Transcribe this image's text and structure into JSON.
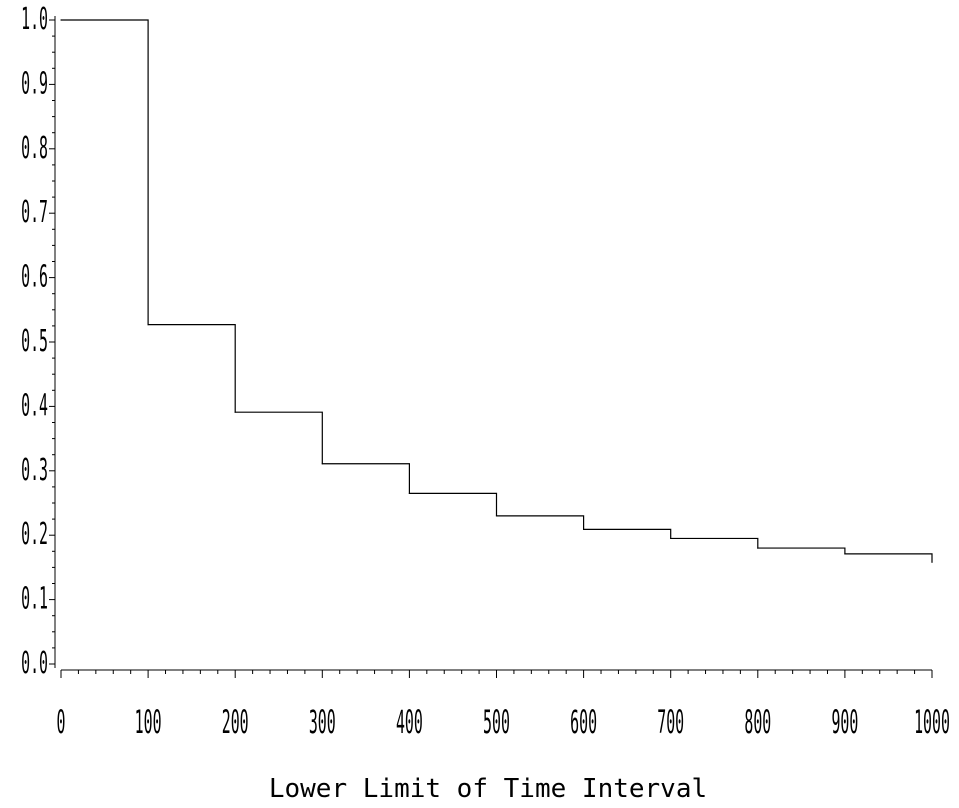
{
  "chart_data": {
    "type": "line",
    "step": true,
    "title": "",
    "xlabel": "Lower Limit of Time Interval",
    "ylabel": "",
    "xlim": [
      0,
      1000
    ],
    "ylim": [
      0.0,
      1.0
    ],
    "x_ticks": [
      "0",
      "100",
      "200",
      "300",
      "400",
      "500",
      "600",
      "700",
      "800",
      "900",
      "1000"
    ],
    "y_ticks": [
      "0.0",
      "0.1",
      "0.2",
      "0.3",
      "0.4",
      "0.5",
      "0.6",
      "0.7",
      "0.8",
      "0.9",
      "1.0"
    ],
    "x_tick_values": [
      0,
      100,
      200,
      300,
      400,
      500,
      600,
      700,
      800,
      900,
      1000
    ],
    "y_tick_values": [
      0.0,
      0.1,
      0.2,
      0.3,
      0.4,
      0.5,
      0.6,
      0.7,
      0.8,
      0.9,
      1.0
    ],
    "grid": false,
    "legend": "none",
    "series": [
      {
        "x": [
          0,
          100,
          200,
          300,
          400,
          500,
          600,
          700,
          800,
          900,
          1000
        ],
        "y": [
          1.0,
          0.527,
          0.391,
          0.311,
          0.265,
          0.23,
          0.209,
          0.195,
          0.18,
          0.171,
          0.158
        ],
        "color": "#000000"
      }
    ]
  }
}
